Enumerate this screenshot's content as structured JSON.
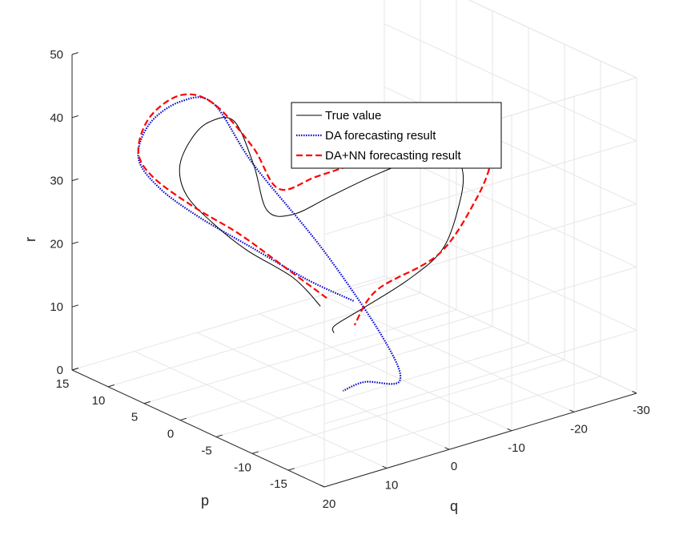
{
  "chart_data": {
    "type": "line",
    "projection": "3d",
    "title": "",
    "xlabel": "q",
    "ylabel": "p",
    "zlabel": "r",
    "xlim": [
      -30,
      20
    ],
    "ylim": [
      -20,
      15
    ],
    "zlim": [
      0,
      50
    ],
    "xticks": [
      "-30",
      "-20",
      "-10",
      "0",
      "10",
      "20"
    ],
    "yticks": [
      "-15",
      "-10",
      "-5",
      "0",
      "5",
      "10",
      "15"
    ],
    "zticks": [
      "0",
      "10",
      "20",
      "30",
      "40",
      "50"
    ],
    "grid": true,
    "legend_position": "top-center",
    "series": [
      {
        "name": "True value",
        "color": "#000000",
        "style": "solid",
        "x": [
          1,
          3,
          7,
          10,
          12,
          12,
          9,
          5,
          1,
          -1,
          -2,
          -5,
          -10,
          -15,
          -18,
          -19,
          -16,
          -11,
          -6,
          -3,
          0,
          1,
          0
        ],
        "y": [
          -3,
          -1,
          2,
          4,
          6,
          7,
          8,
          9,
          9,
          8,
          7,
          6,
          5,
          3,
          0,
          -4,
          -8,
          -12,
          -14,
          -12,
          -8,
          -5,
          -4
        ],
        "z": [
          14,
          18,
          22,
          26,
          30,
          34,
          37,
          38,
          37,
          30,
          23,
          22,
          24,
          27,
          30,
          32,
          33,
          32,
          27,
          22,
          16,
          12,
          10
        ]
      },
      {
        "name": "DA forecasting result",
        "color": "#0000cc",
        "style": "dotted",
        "x": [
          -2,
          2,
          6,
          10,
          13,
          14,
          11,
          6,
          2,
          -1,
          -3,
          -1,
          1,
          2,
          2
        ],
        "y": [
          -5,
          -2,
          2,
          6,
          9,
          11,
          12,
          12,
          11,
          8,
          0,
          -10,
          -14,
          -10,
          -7
        ],
        "z": [
          15,
          18,
          22,
          26,
          30,
          34,
          38,
          40,
          39,
          30,
          20,
          12,
          8,
          6,
          3
        ]
      },
      {
        "name": "DA+NN forecasting result",
        "color": "#ff0000",
        "style": "dashed",
        "x": [
          0,
          3,
          7,
          11,
          14,
          14,
          11,
          6,
          2,
          -2,
          -5,
          -10,
          -16,
          -20,
          -22,
          -21,
          -16,
          -9,
          -3,
          0,
          -1
        ],
        "y": [
          -3,
          0,
          3,
          6,
          9,
          11,
          12,
          12,
          11,
          9,
          8,
          7,
          5,
          2,
          -2,
          -7,
          -12,
          -16,
          -16,
          -10,
          -6
        ],
        "z": [
          15,
          19,
          24,
          28,
          32,
          35,
          39,
          41,
          39,
          32,
          25,
          26,
          28,
          31,
          34,
          36,
          37,
          35,
          28,
          20,
          12
        ]
      }
    ]
  }
}
